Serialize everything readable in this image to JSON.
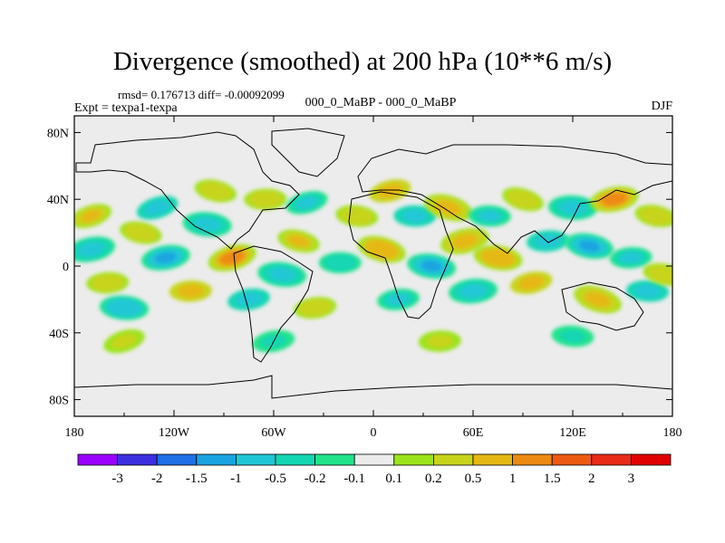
{
  "chart_data": {
    "type": "heatmap",
    "title": "Divergence (smoothed) at 200 hPa (10**6 m/s)",
    "stats_line": "rmsd= 0.176713 diff= -0.00092099",
    "left_label": "Expt = texpa1-texpa",
    "center_label": "000_0_MaBP - 000_0_MaBP",
    "right_label": "DJF",
    "x_ticks": [
      "180",
      "120W",
      "60W",
      "0",
      "60E",
      "120E",
      "180"
    ],
    "x_tick_values": [
      -180,
      -120,
      -60,
      0,
      60,
      120,
      180
    ],
    "y_ticks": [
      "80N",
      "40N",
      "0",
      "40S",
      "80S"
    ],
    "y_tick_values": [
      80,
      40,
      0,
      -40,
      -80
    ],
    "xlim": [
      -180,
      180
    ],
    "ylim": [
      -90,
      90
    ],
    "colorbar": {
      "levels": [
        "-3",
        "-2",
        "-1.5",
        "-1",
        "-0.5",
        "-0.2",
        "-0.1",
        "0.1",
        "0.2",
        "0.5",
        "1",
        "1.5",
        "2",
        "3"
      ],
      "colors": [
        "#9a00ff",
        "#3c2fe0",
        "#1f6fe6",
        "#1aa3e0",
        "#20c7d6",
        "#14d6b3",
        "#22e38a",
        "#ececec",
        "#9be31a",
        "#c8d41a",
        "#e6b814",
        "#ec8a12",
        "#ec5a12",
        "#e82a16",
        "#e00000"
      ]
    },
    "blobs": [
      {
        "lon": -170,
        "lat": 30,
        "v": 0.55
      },
      {
        "lon": -170,
        "lat": 10,
        "v": -0.7
      },
      {
        "lon": -160,
        "lat": -10,
        "v": 0.35
      },
      {
        "lon": -150,
        "lat": -25,
        "v": -0.9
      },
      {
        "lon": -140,
        "lat": 20,
        "v": 0.45
      },
      {
        "lon": -130,
        "lat": 35,
        "v": -0.6
      },
      {
        "lon": -125,
        "lat": 5,
        "v": -1.1
      },
      {
        "lon": -110,
        "lat": -15,
        "v": 0.6
      },
      {
        "lon": -100,
        "lat": 25,
        "v": -0.8
      },
      {
        "lon": -95,
        "lat": 45,
        "v": 0.5
      },
      {
        "lon": -85,
        "lat": 5,
        "v": 1.3
      },
      {
        "lon": -75,
        "lat": -20,
        "v": -0.6
      },
      {
        "lon": -65,
        "lat": 40,
        "v": 0.4
      },
      {
        "lon": -55,
        "lat": -5,
        "v": -0.7
      },
      {
        "lon": -45,
        "lat": 15,
        "v": 0.55
      },
      {
        "lon": -40,
        "lat": 38,
        "v": -0.5
      },
      {
        "lon": -35,
        "lat": -25,
        "v": 0.5
      },
      {
        "lon": -20,
        "lat": 2,
        "v": -0.4
      },
      {
        "lon": -10,
        "lat": 30,
        "v": 0.5
      },
      {
        "lon": 5,
        "lat": 10,
        "v": 0.9
      },
      {
        "lon": 10,
        "lat": 45,
        "v": 0.6
      },
      {
        "lon": 15,
        "lat": -20,
        "v": -0.5
      },
      {
        "lon": 25,
        "lat": 30,
        "v": -0.6
      },
      {
        "lon": 35,
        "lat": 0,
        "v": -1.0
      },
      {
        "lon": 45,
        "lat": 35,
        "v": 0.7
      },
      {
        "lon": 55,
        "lat": 15,
        "v": 0.8
      },
      {
        "lon": 60,
        "lat": -15,
        "v": -0.7
      },
      {
        "lon": 70,
        "lat": 30,
        "v": -0.5
      },
      {
        "lon": 75,
        "lat": 5,
        "v": 0.9
      },
      {
        "lon": 90,
        "lat": 40,
        "v": 0.5
      },
      {
        "lon": 95,
        "lat": -10,
        "v": 0.6
      },
      {
        "lon": 105,
        "lat": 15,
        "v": -0.6
      },
      {
        "lon": 120,
        "lat": 35,
        "v": -0.7
      },
      {
        "lon": 130,
        "lat": 12,
        "v": -1.1
      },
      {
        "lon": 135,
        "lat": -20,
        "v": 0.7
      },
      {
        "lon": 145,
        "lat": 40,
        "v": 1.2
      },
      {
        "lon": 155,
        "lat": 5,
        "v": -0.5
      },
      {
        "lon": 165,
        "lat": -15,
        "v": -0.6
      },
      {
        "lon": 170,
        "lat": 30,
        "v": 0.5
      },
      {
        "lon": -150,
        "lat": -45,
        "v": 0.3
      },
      {
        "lon": -60,
        "lat": -45,
        "v": -0.3
      },
      {
        "lon": 40,
        "lat": -45,
        "v": 0.3
      },
      {
        "lon": 120,
        "lat": -42,
        "v": -0.3
      },
      {
        "lon": 175,
        "lat": -5,
        "v": 0.4
      }
    ]
  }
}
